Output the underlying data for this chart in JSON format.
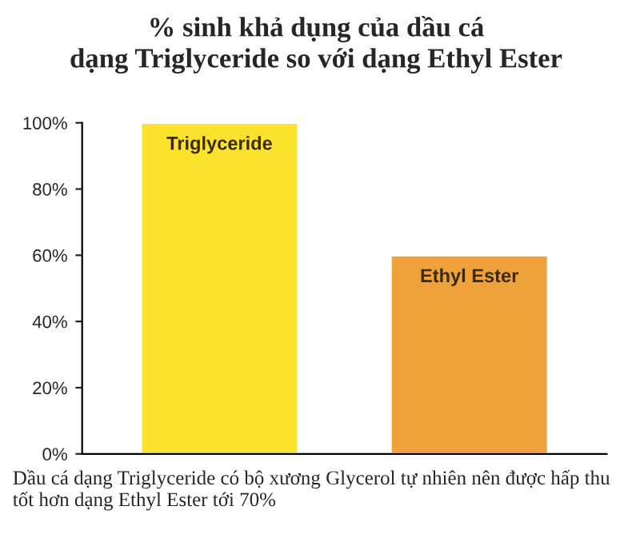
{
  "chart_data": {
    "type": "bar",
    "title": "% sinh khả dụng của dầu cá\ndạng Triglyceride so với dạng Ethyl Ester",
    "categories": [
      "Triglyceride",
      "Ethyl Ester"
    ],
    "values": [
      100,
      60
    ],
    "colors": [
      "#fbe22c",
      "#f0a23a"
    ],
    "ylim": [
      0,
      100
    ],
    "yticks": [
      {
        "value": 0,
        "label": "0%"
      },
      {
        "value": 20,
        "label": "20%"
      },
      {
        "value": 40,
        "label": "40%"
      },
      {
        "value": 60,
        "label": "60%"
      },
      {
        "value": 80,
        "label": "80%"
      },
      {
        "value": 100,
        "label": "100%"
      }
    ],
    "grid": false,
    "annotations": [
      "Dầu cá dạng Triglyceride có bộ xương Glycerol tự nhiên nên được hấp thu tốt hơn dạng Ethyl Ester tới 70%"
    ]
  }
}
